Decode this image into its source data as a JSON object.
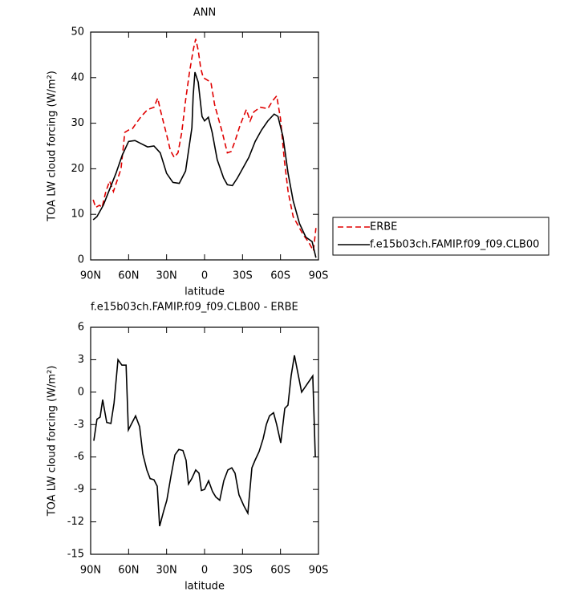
{
  "chart_data": [
    {
      "type": "line",
      "title": "ANN",
      "xlabel": "latitude",
      "ylabel": "TOA LW cloud forcing (W/m²)",
      "xlim": [
        90,
        -90
      ],
      "ylim": [
        0,
        50
      ],
      "xticks": [
        {
          "value": 90,
          "label": "90N"
        },
        {
          "value": 60,
          "label": "60N"
        },
        {
          "value": 30,
          "label": "30N"
        },
        0,
        {
          "value": -30,
          "label": "30S"
        },
        {
          "value": -60,
          "label": "60S"
        },
        {
          "value": -90,
          "label": "90S"
        }
      ],
      "yticks": [
        0,
        10,
        20,
        30,
        40,
        50
      ],
      "legend": "right",
      "series": [
        {
          "name": "ERBE",
          "color": "#e00000",
          "line_style": "dashed",
          "x": [
            88,
            86,
            83,
            81,
            78,
            75,
            72,
            69,
            66,
            63,
            60,
            57,
            54,
            50,
            45,
            40,
            37,
            35,
            30,
            27,
            24,
            21,
            18,
            15,
            12,
            9,
            7,
            5,
            3,
            1,
            -2,
            -5,
            -8,
            -11,
            -14,
            -18,
            -21,
            -24,
            -28,
            -33,
            -36,
            -39,
            -44,
            -50,
            -54,
            -57,
            -60,
            -63,
            -66,
            -70,
            -74,
            -78,
            -82,
            -86,
            -88
          ],
          "values": [
            13.2,
            11.5,
            12,
            11.5,
            15,
            17.3,
            15,
            17.5,
            20,
            28,
            28.5,
            28.8,
            30,
            31.5,
            33,
            33.5,
            35.5,
            33,
            27.5,
            24,
            22.5,
            23.5,
            28,
            35,
            41,
            46,
            48.5,
            46,
            42,
            40,
            39.5,
            39,
            34,
            31,
            28,
            23.5,
            23.8,
            26,
            29.5,
            33,
            30.5,
            32.5,
            33.5,
            33.2,
            35,
            36,
            31,
            22,
            15,
            9.5,
            7.5,
            5.5,
            4,
            2,
            7
          ]
        },
        {
          "name": "f.e15b03ch.FAMIP.f09_f09.CLB00",
          "color": "#000000",
          "line_style": "solid",
          "x": [
            88,
            85,
            80,
            75,
            70,
            65,
            60,
            55,
            50,
            45,
            40,
            35,
            30,
            25,
            20,
            15,
            10,
            9,
            7.6,
            5,
            2,
            0,
            -3,
            -6,
            -10,
            -15,
            -18,
            -22,
            -26,
            -30,
            -35,
            -40,
            -45,
            -50,
            -55,
            -58,
            -62,
            -66,
            -70,
            -75,
            -80,
            -85,
            -88
          ],
          "values": [
            8.8,
            9.5,
            12,
            15.5,
            19,
            23,
            26,
            26.2,
            25.5,
            24.8,
            25,
            23.5,
            19,
            17,
            16.8,
            19.5,
            29,
            36,
            41.2,
            39,
            31.5,
            30.5,
            31.3,
            28,
            22,
            18,
            16.5,
            16.3,
            18,
            20,
            22.5,
            26,
            28.5,
            30.5,
            32,
            31.5,
            27,
            19,
            13,
            8,
            5,
            4,
            0.5
          ]
        }
      ]
    },
    {
      "type": "line",
      "title": "f.e15b03ch.FAMIP.f09_f09.CLB00 - ERBE",
      "xlabel": "latitude",
      "ylabel": "TOA LW cloud forcing (W/m²)",
      "xlim": [
        90,
        -90
      ],
      "ylim": [
        -15,
        6
      ],
      "xticks": [
        {
          "value": 90,
          "label": "90N"
        },
        {
          "value": 60,
          "label": "60N"
        },
        {
          "value": 30,
          "label": "30N"
        },
        0,
        {
          "value": -30,
          "label": "30S"
        },
        {
          "value": -60,
          "label": "60S"
        },
        {
          "value": -90,
          "label": "90S"
        }
      ],
      "yticks": [
        -15,
        -12,
        -9,
        -6,
        -3,
        0,
        3,
        6
      ],
      "series": [
        {
          "color": "#000000",
          "line_style": "solid",
          "x": [
            87.5,
            85,
            82.5,
            80.5,
            77.3,
            74,
            71.5,
            68.4,
            65.3,
            62,
            60.2,
            54.5,
            51.3,
            48.8,
            45.6,
            43,
            40,
            37.4,
            35.5,
            32.3,
            29.8,
            26.6,
            23.4,
            20.3,
            17.1,
            14.6,
            12.7,
            10.1,
            7,
            4.4,
            2.5,
            0,
            -3.2,
            -6.3,
            -8.9,
            -12,
            -15.2,
            -18.4,
            -21.5,
            -24.1,
            -27.2,
            -31,
            -34.2,
            -37.4,
            -39.9,
            -43.1,
            -46.3,
            -48.8,
            -51.3,
            -54.5,
            -57,
            -60.2,
            -63.4,
            -65.9,
            -68.4,
            -71,
            -76.7,
            -85.5,
            -87.5
          ],
          "values": [
            -4.5,
            -2.5,
            -2.3,
            -0.7,
            -2.8,
            -2.9,
            -1,
            3,
            2.5,
            2.5,
            -3.5,
            -2.2,
            -3.2,
            -5.7,
            -7.2,
            -8,
            -8.1,
            -8.7,
            -12.4,
            -11,
            -10,
            -7.8,
            -5.8,
            -5.3,
            -5.4,
            -6.3,
            -8.5,
            -8,
            -7.2,
            -7.5,
            -9.1,
            -9,
            -8.2,
            -9.2,
            -9.7,
            -10,
            -8.2,
            -7.2,
            -7,
            -7.5,
            -9.5,
            -10.5,
            -11.2,
            -7,
            -6.3,
            -5.5,
            -4.3,
            -3,
            -2.2,
            -1.9,
            -3,
            -4.7,
            -1.5,
            -1.2,
            1.5,
            3.4,
            0,
            1.5,
            -6
          ]
        }
      ]
    }
  ]
}
